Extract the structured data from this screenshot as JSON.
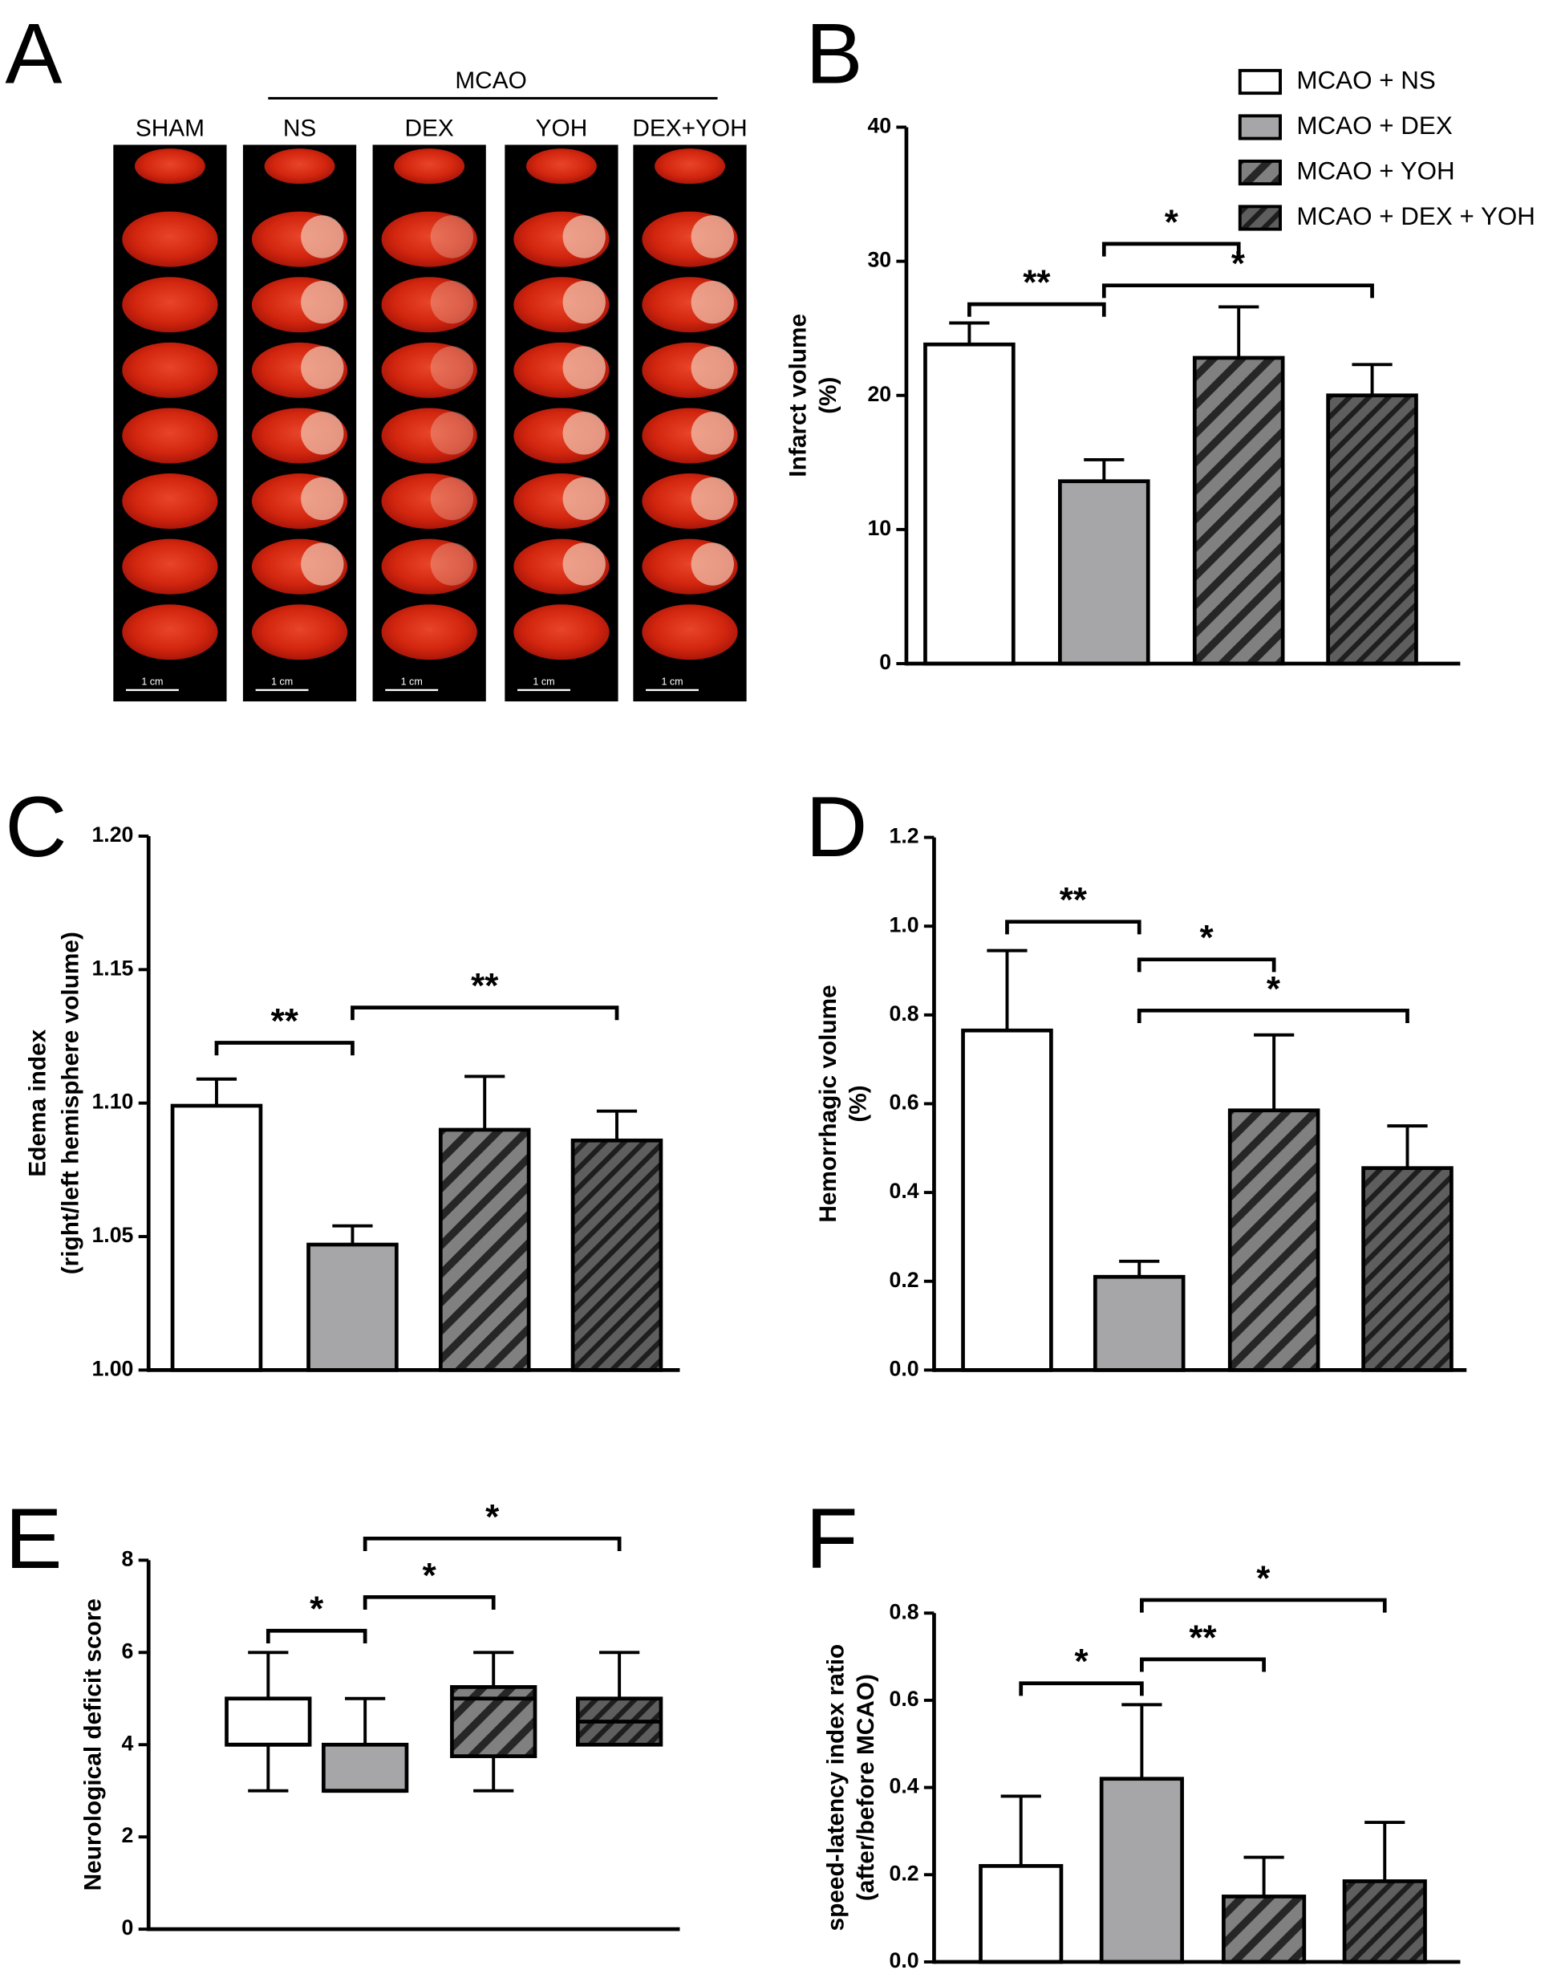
{
  "panel_a": {
    "letter": "A",
    "group_label": "MCAO",
    "columns": [
      "SHAM",
      "NS",
      "DEX",
      "YOH",
      "DEX+YOH"
    ],
    "scale_bar_label": "1 cm"
  },
  "chart_data": [
    {
      "panel": "B",
      "type": "bar",
      "y_title": [
        "Infarct volume",
        "(%)"
      ],
      "values": [
        23.8,
        13.6,
        22.8,
        20.0
      ],
      "errors": [
        1.6,
        1.6,
        3.8,
        2.3
      ],
      "colors": [
        "#ffffff",
        "#a6a6a8",
        "#808080",
        "#595959"
      ],
      "hatch": [
        "none",
        "none",
        "wide",
        "dense"
      ],
      "ylim": [
        0,
        40
      ],
      "yticks": [
        0,
        10,
        20,
        30,
        40
      ],
      "legend": [
        "MCAO + NS",
        "MCAO + DEX",
        "MCAO + YOH",
        "MCAO + DEX + YOH"
      ],
      "brackets": [
        {
          "from": 0,
          "to": 1,
          "y": 26.8,
          "label": "**"
        },
        {
          "from": 1,
          "to": 2,
          "y": 31.3,
          "label": "*"
        },
        {
          "from": 1,
          "to": 3,
          "y": 28.2,
          "label": "*"
        }
      ]
    },
    {
      "panel": "C",
      "type": "bar",
      "y_title": [
        "Edema index",
        "(right/left hemisphere volume)"
      ],
      "values": [
        1.099,
        1.047,
        1.09,
        1.086
      ],
      "errors": [
        0.01,
        0.007,
        0.02,
        0.011
      ],
      "colors": [
        "#ffffff",
        "#a6a6a8",
        "#808080",
        "#595959"
      ],
      "hatch": [
        "none",
        "none",
        "wide",
        "dense"
      ],
      "ylim": [
        1.0,
        1.2
      ],
      "yticks": [
        {
          "value": 1.0,
          "label": "1.00"
        },
        1.05,
        {
          "value": 1.1,
          "label": "1.10"
        },
        1.15,
        {
          "value": 1.2,
          "label": "1.20"
        }
      ],
      "brackets": [
        {
          "from": 0,
          "to": 1,
          "y": 1.1226,
          "label": "**"
        },
        {
          "from": 1,
          "to": 3,
          "y": 1.1358,
          "label": "**"
        }
      ]
    },
    {
      "panel": "D",
      "type": "bar",
      "y_title": [
        "Hemorrhagic volume",
        "(%)"
      ],
      "values": [
        0.765,
        0.21,
        0.585,
        0.455
      ],
      "errors": [
        0.18,
        0.035,
        0.17,
        0.095
      ],
      "colors": [
        "#ffffff",
        "#a6a6a8",
        "#808080",
        "#595959"
      ],
      "hatch": [
        "none",
        "none",
        "wide",
        "dense"
      ],
      "ylim": [
        0,
        1.2
      ],
      "yticks": [
        {
          "value": 0,
          "label": "0.0"
        },
        0.2,
        0.4,
        0.6,
        0.8,
        {
          "value": 1.0,
          "label": "1.0"
        },
        1.2
      ],
      "brackets": [
        {
          "from": 0,
          "to": 1,
          "y": 1.01,
          "label": "**"
        },
        {
          "from": 1,
          "to": 2,
          "y": 0.925,
          "label": "*"
        },
        {
          "from": 1,
          "to": 3,
          "y": 0.81,
          "label": "*"
        }
      ]
    },
    {
      "panel": "E",
      "type": "box",
      "y_title": [
        "Neurological deficit score"
      ],
      "min": [
        3,
        3,
        3,
        4
      ],
      "q1": [
        4,
        3,
        3.75,
        4
      ],
      "median": [
        4,
        3,
        5,
        4.5
      ],
      "q3": [
        5,
        4,
        5.25,
        5
      ],
      "max": [
        6,
        5,
        6,
        6
      ],
      "colors": [
        "#ffffff",
        "#a6a6a8",
        "#808080",
        "#595959"
      ],
      "hatch": [
        "none",
        "none",
        "wide",
        "dense"
      ],
      "ylim": [
        0,
        8
      ],
      "yticks": [
        0,
        2,
        4,
        6,
        8
      ],
      "brackets": [
        {
          "from": 0,
          "to": 1,
          "y": 6.47,
          "label": "*"
        },
        {
          "from": 1,
          "to": 2,
          "y": 7.2,
          "label": "*"
        },
        {
          "from": 1,
          "to": 3,
          "y": 8.47,
          "label": "*"
        }
      ]
    },
    {
      "panel": "F",
      "type": "bar",
      "y_title": [
        "speed-latency index ratio",
        "(after/before MCAO)"
      ],
      "values": [
        0.22,
        0.42,
        0.15,
        0.185
      ],
      "errors": [
        0.16,
        0.17,
        0.09,
        0.135
      ],
      "colors": [
        "#ffffff",
        "#a6a6a8",
        "#808080",
        "#595959"
      ],
      "hatch": [
        "none",
        "none",
        "wide",
        "dense"
      ],
      "ylim": [
        0,
        0.8
      ],
      "yticks": [
        {
          "value": 0,
          "label": "0.0"
        },
        0.2,
        0.4,
        0.6,
        0.8
      ],
      "brackets": [
        {
          "from": 0,
          "to": 1,
          "y": 0.639,
          "label": "*"
        },
        {
          "from": 1,
          "to": 2,
          "y": 0.694,
          "label": "**"
        },
        {
          "from": 1,
          "to": 3,
          "y": 0.83,
          "label": "*"
        }
      ]
    }
  ]
}
